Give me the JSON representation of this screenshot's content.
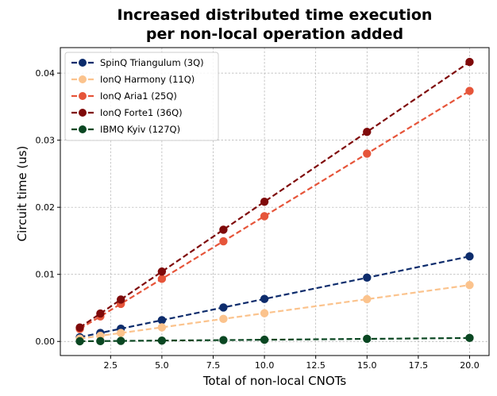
{
  "chart_data": {
    "type": "line",
    "title": [
      "Increased distributed time execution",
      "per non-local operation added"
    ],
    "xlabel": "Total of non-local CNOTs",
    "ylabel": "Circuit time (us)",
    "xlim": [
      0.05,
      20.95
    ],
    "ylim": [
      -0.0021,
      0.0438
    ],
    "xticks": [
      2.5,
      5.0,
      7.5,
      10.0,
      12.5,
      15.0,
      17.5,
      20.0
    ],
    "xtick_labels": [
      "2.5",
      "5.0",
      "7.5",
      "10.0",
      "12.5",
      "15.0",
      "17.5",
      "20.0"
    ],
    "yticks": [
      0.0,
      0.01,
      0.02,
      0.03,
      0.04
    ],
    "ytick_labels": [
      "0.00",
      "0.01",
      "0.02",
      "0.03",
      "0.04"
    ],
    "grid": true,
    "legend_position": "top-left",
    "x": [
      1,
      2,
      3,
      5,
      8,
      10,
      15,
      20
    ],
    "series": [
      {
        "name": "SpinQ Triangulum (3Q)",
        "color": "#0d2c6c",
        "values": [
          0.00063,
          0.00127,
          0.0019,
          0.00317,
          0.00507,
          0.00634,
          0.00951,
          0.01268
        ]
      },
      {
        "name": "IonQ Harmony (11Q)",
        "color": "#fbc38d",
        "values": [
          0.00042,
          0.00084,
          0.00126,
          0.0021,
          0.00336,
          0.0042,
          0.0063,
          0.0084
        ]
      },
      {
        "name": "IonQ Aria1 (25Q)",
        "color": "#e6553a",
        "values": [
          0.00187,
          0.00373,
          0.0056,
          0.00933,
          0.01493,
          0.01867,
          0.028,
          0.03734
        ]
      },
      {
        "name": "IonQ Forte1 (36Q)",
        "color": "#7f0a0a",
        "values": [
          0.00208,
          0.00416,
          0.00625,
          0.01041,
          0.01666,
          0.02083,
          0.03124,
          0.04166
        ]
      },
      {
        "name": "IBMQ Kyiv (127Q)",
        "color": "#0a4722",
        "values": [
          3e-05,
          5e-05,
          8e-05,
          0.00013,
          0.0002,
          0.00026,
          0.00039,
          0.00052
        ]
      }
    ]
  }
}
